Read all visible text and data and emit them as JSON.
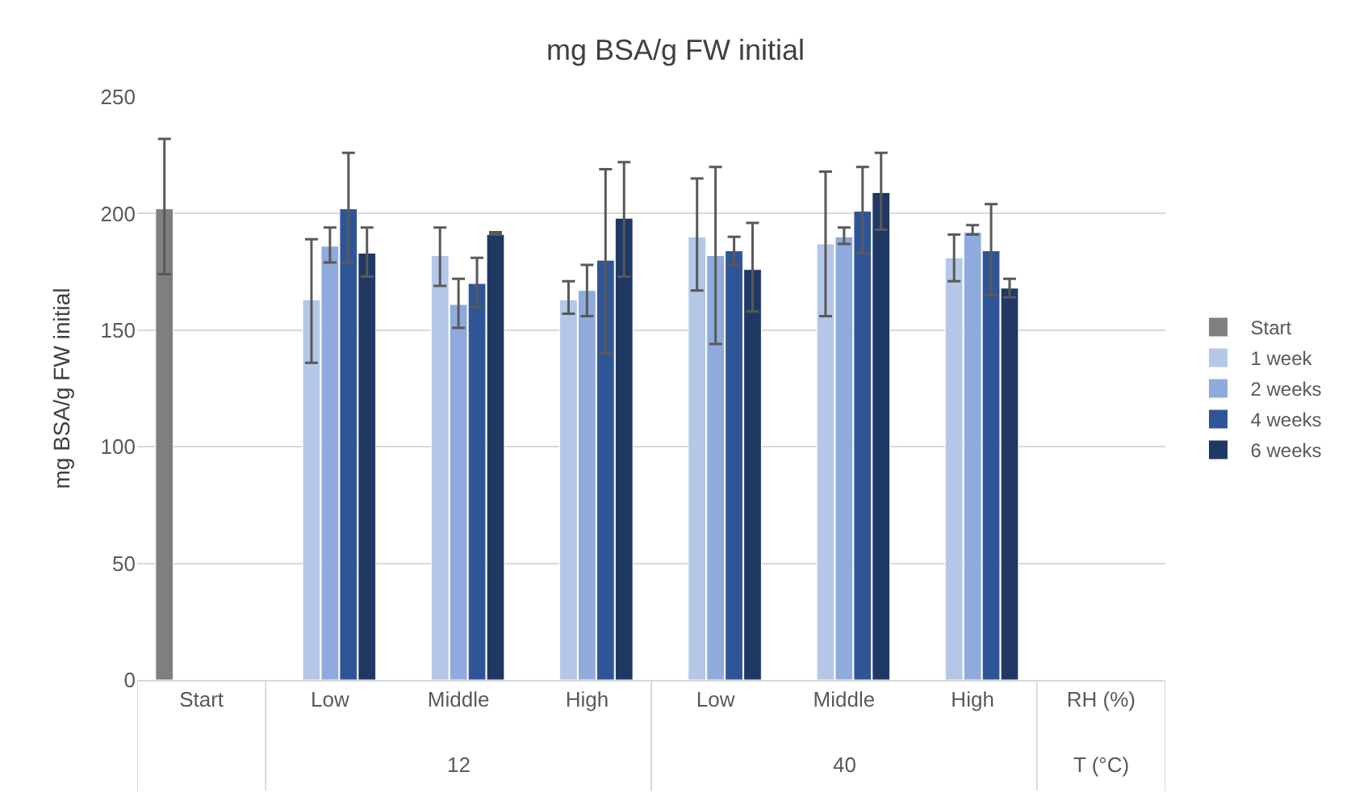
{
  "chart_data": {
    "type": "bar",
    "title": "mg BSA/g FW initial",
    "ylabel": "mg BSA/g FW initial",
    "categories": [
      "Start",
      "Low",
      "Middle",
      "High",
      "Low",
      "Middle",
      "High",
      "RH (%)"
    ],
    "annotations": [
      "12",
      "40",
      "T (°C)"
    ],
    "series": [
      {
        "name": "Start",
        "color": "#7f7f7f",
        "values": [
          202,
          null,
          null,
          null,
          null,
          null,
          null,
          null
        ],
        "errors": [
          [
            174,
            232
          ],
          null,
          null,
          null,
          null,
          null,
          null,
          null
        ]
      },
      {
        "name": "1 week",
        "color": "#b4c7e7",
        "values": [
          null,
          163,
          182,
          163,
          190,
          187,
          181,
          null
        ],
        "errors": [
          null,
          [
            136,
            189
          ],
          [
            169,
            194
          ],
          [
            157,
            171
          ],
          [
            167,
            215
          ],
          [
            156,
            218
          ],
          [
            171,
            191
          ],
          null
        ]
      },
      {
        "name": "2 weeks",
        "color": "#8faadc",
        "values": [
          null,
          186,
          161,
          167,
          182,
          190,
          192,
          null
        ],
        "errors": [
          null,
          [
            179,
            194
          ],
          [
            151,
            172
          ],
          [
            156,
            178
          ],
          [
            144,
            220
          ],
          [
            187,
            194
          ],
          [
            191,
            195
          ],
          null
        ]
      },
      {
        "name": "4 weeks",
        "color": "#2f5597",
        "values": [
          null,
          202,
          170,
          180,
          184,
          201,
          184,
          null
        ],
        "errors": [
          null,
          [
            179,
            226
          ],
          [
            160,
            181
          ],
          [
            140,
            219
          ],
          [
            178,
            190
          ],
          [
            183,
            220
          ],
          [
            165,
            204
          ],
          null
        ]
      },
      {
        "name": "6 weeks",
        "color": "#203864",
        "values": [
          null,
          183,
          191,
          198,
          176,
          209,
          168,
          null
        ],
        "errors": [
          null,
          [
            173,
            194
          ],
          [
            191,
            192
          ],
          [
            173,
            222
          ],
          [
            158,
            196
          ],
          [
            193,
            226
          ],
          [
            164,
            172
          ],
          null
        ]
      }
    ],
    "ylim": [
      0,
      250
    ],
    "yticks": [
      0,
      50,
      100,
      150,
      200,
      250
    ],
    "grid": "y",
    "legend": "right"
  }
}
